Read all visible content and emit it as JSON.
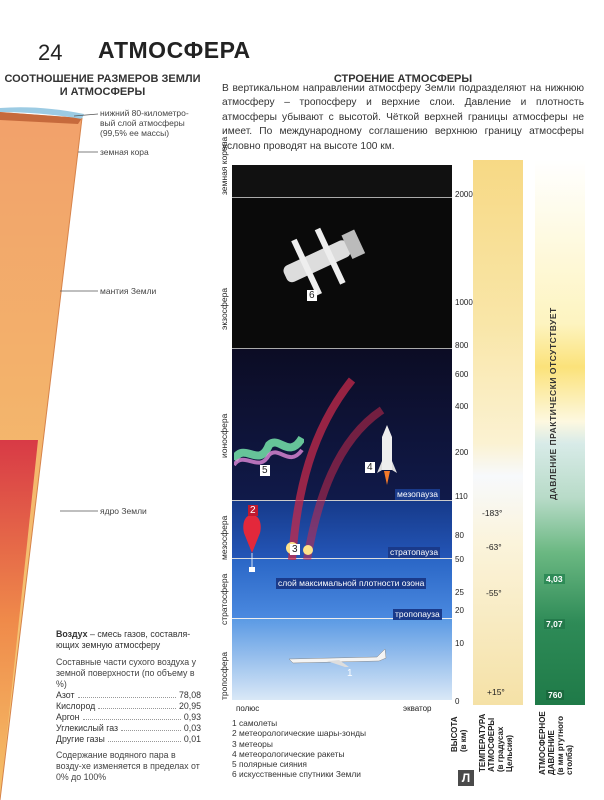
{
  "page": {
    "number": "24",
    "title": "АТМОСФЕРА"
  },
  "left": {
    "heading": [
      "СООТНОШЕНИЕ РАЗМЕРОВ ЗЕМЛИ",
      "И АТМОСФЕРЫ"
    ],
    "labels": {
      "atmosphere": [
        "нижний 80-километро-",
        "вый слой атмосферы",
        "(99,5% ее массы)"
      ],
      "crust": "земная кора",
      "mantle": "мантия Земли",
      "core": "ядро Земли"
    },
    "air": {
      "title": "Воздух",
      "definition": " – смесь газов, составля-ющих земную атмосферу",
      "composition_intro": "Составные части сухого воздуха у земной поверхности (по объему в %)",
      "gases": [
        {
          "name": "Азот",
          "value": "78,08"
        },
        {
          "name": "Кислород",
          "value": "20,95"
        },
        {
          "name": "Аргон",
          "value": "0,93"
        },
        {
          "name": "Углекислый газ",
          "value": "0,03"
        },
        {
          "name": "Другие газы",
          "value": "0,01"
        }
      ],
      "water_note": "Содержание водяного пара в возду-хе изменяется в пределах от 0% до 100%"
    }
  },
  "right": {
    "heading": "СТРОЕНИЕ АТМОСФЕРЫ",
    "intro": "В вертикальном направлении атмосферу Земли подразделяют на нижнюю атмосферу – тропосферу и верхние слои. Давление и плотность атмосферы убывают с высотой. Чёткой верхней границы атмосферы не имеет. По международному соглашению верхнюю границу атмосферы условно проводят на высоте 100 км.",
    "layers": [
      "земная корона",
      "экзосфера",
      "ионосфера",
      "мезосфера",
      "стратосфера",
      "тропосфера"
    ],
    "boundaries": {
      "mesopause": "мезопауза",
      "stratopause": "стратопауза",
      "ozone": "слой максимальной плотности озона",
      "tropopause": "тропопауза"
    },
    "heights": [
      "2000",
      "1000",
      "800",
      "600",
      "400",
      "200",
      "110",
      "80",
      "50",
      "25",
      "20",
      "10",
      "0"
    ],
    "bottom_labels": {
      "pole": "полюс",
      "equator": "экватор"
    },
    "markers": [
      "1",
      "2",
      "3",
      "4",
      "5",
      "6"
    ],
    "temperatures": [
      "-183°",
      "-63°",
      "-55°",
      "+15°"
    ],
    "pressures": [
      "4,03",
      "7,07",
      "760"
    ],
    "pressure_top_text": "ДАВЛЕНИЕ ПРАКТИЧЕСКИ ОТСУТСТВУЕТ",
    "col_headers": {
      "height": [
        "ВЫСОТА",
        "(в км)"
      ],
      "temperature": [
        "ТЕМПЕРАТУРА",
        "АТМОСФЕРЫ",
        "(в градусах",
        "Цельсия)"
      ],
      "pressure": [
        "АТМОСФЕРНОЕ",
        "ДАВЛЕНИЕ",
        "(в мм ртутного",
        "столба)"
      ]
    },
    "legend": [
      "1 самолеты",
      "2 метеорологические шары-зонды",
      "3 метеоры",
      "4 метеорологические ракеты",
      "5 полярные сияния",
      "6 искусственные спутники Земли"
    ]
  },
  "colors": {
    "accent_blue": "#1a3a8a",
    "pressure_green": "#2e8b57",
    "temp_yellow": "#f5d98a"
  }
}
